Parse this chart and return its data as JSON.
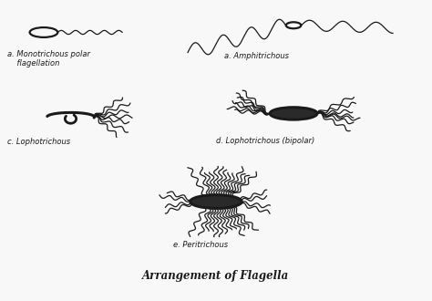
{
  "title": "Arrangement of Flagella",
  "bg_color": "#f8f8f8",
  "draw_color": "#1a1a1a",
  "labels": {
    "a_mono": "a. Monotrichous polar\n    flagellation",
    "a_amphi": "a. Amphitrichous",
    "c_lopho": "c. Lophotrichous",
    "d_bipolar": "d. Lophotrichous (bipolar)",
    "e_peri": "e. Peritrichous"
  },
  "figsize": [
    4.74,
    3.3
  ],
  "dpi": 100
}
